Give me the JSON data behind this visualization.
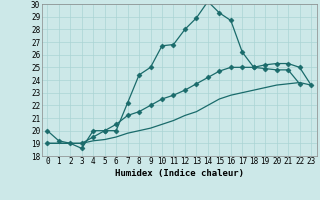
{
  "xlabel": "Humidex (Indice chaleur)",
  "bg_color": "#cce8e8",
  "line_color": "#1a6b6b",
  "xlim": [
    -0.5,
    23.5
  ],
  "ylim": [
    18,
    30
  ],
  "xticks": [
    0,
    1,
    2,
    3,
    4,
    5,
    6,
    7,
    8,
    9,
    10,
    11,
    12,
    13,
    14,
    15,
    16,
    17,
    18,
    19,
    20,
    21,
    22,
    23
  ],
  "yticks": [
    18,
    19,
    20,
    21,
    22,
    23,
    24,
    25,
    26,
    27,
    28,
    29,
    30
  ],
  "line1_x": [
    0,
    1,
    2,
    3,
    4,
    5,
    6,
    7,
    8,
    9,
    10,
    11,
    12,
    13,
    14,
    15,
    16,
    17,
    18,
    19,
    20,
    21,
    22
  ],
  "line1_y": [
    20.0,
    19.2,
    19.0,
    18.6,
    20.0,
    20.0,
    20.0,
    22.2,
    24.4,
    25.0,
    26.7,
    26.8,
    28.0,
    28.9,
    30.2,
    29.3,
    28.7,
    26.2,
    25.0,
    24.9,
    24.8,
    24.8,
    23.7
  ],
  "line2_x": [
    0,
    3,
    4,
    5,
    6,
    7,
    8,
    9,
    10,
    11,
    12,
    13,
    14,
    15,
    16,
    17,
    18,
    19,
    20,
    21,
    22,
    23
  ],
  "line2_y": [
    19.0,
    19.0,
    19.5,
    20.0,
    20.5,
    21.2,
    21.5,
    22.0,
    22.5,
    22.8,
    23.2,
    23.7,
    24.2,
    24.7,
    25.0,
    25.0,
    25.0,
    25.2,
    25.3,
    25.3,
    25.0,
    23.6
  ],
  "line3_x": [
    0,
    3,
    4,
    5,
    6,
    7,
    8,
    9,
    10,
    11,
    12,
    13,
    14,
    15,
    16,
    17,
    18,
    19,
    20,
    21,
    22,
    23
  ],
  "line3_y": [
    19.0,
    19.0,
    19.2,
    19.3,
    19.5,
    19.8,
    20.0,
    20.2,
    20.5,
    20.8,
    21.2,
    21.5,
    22.0,
    22.5,
    22.8,
    23.0,
    23.2,
    23.4,
    23.6,
    23.7,
    23.8,
    23.6
  ],
  "grid_color": "#aad4d4",
  "font_family": "monospace"
}
